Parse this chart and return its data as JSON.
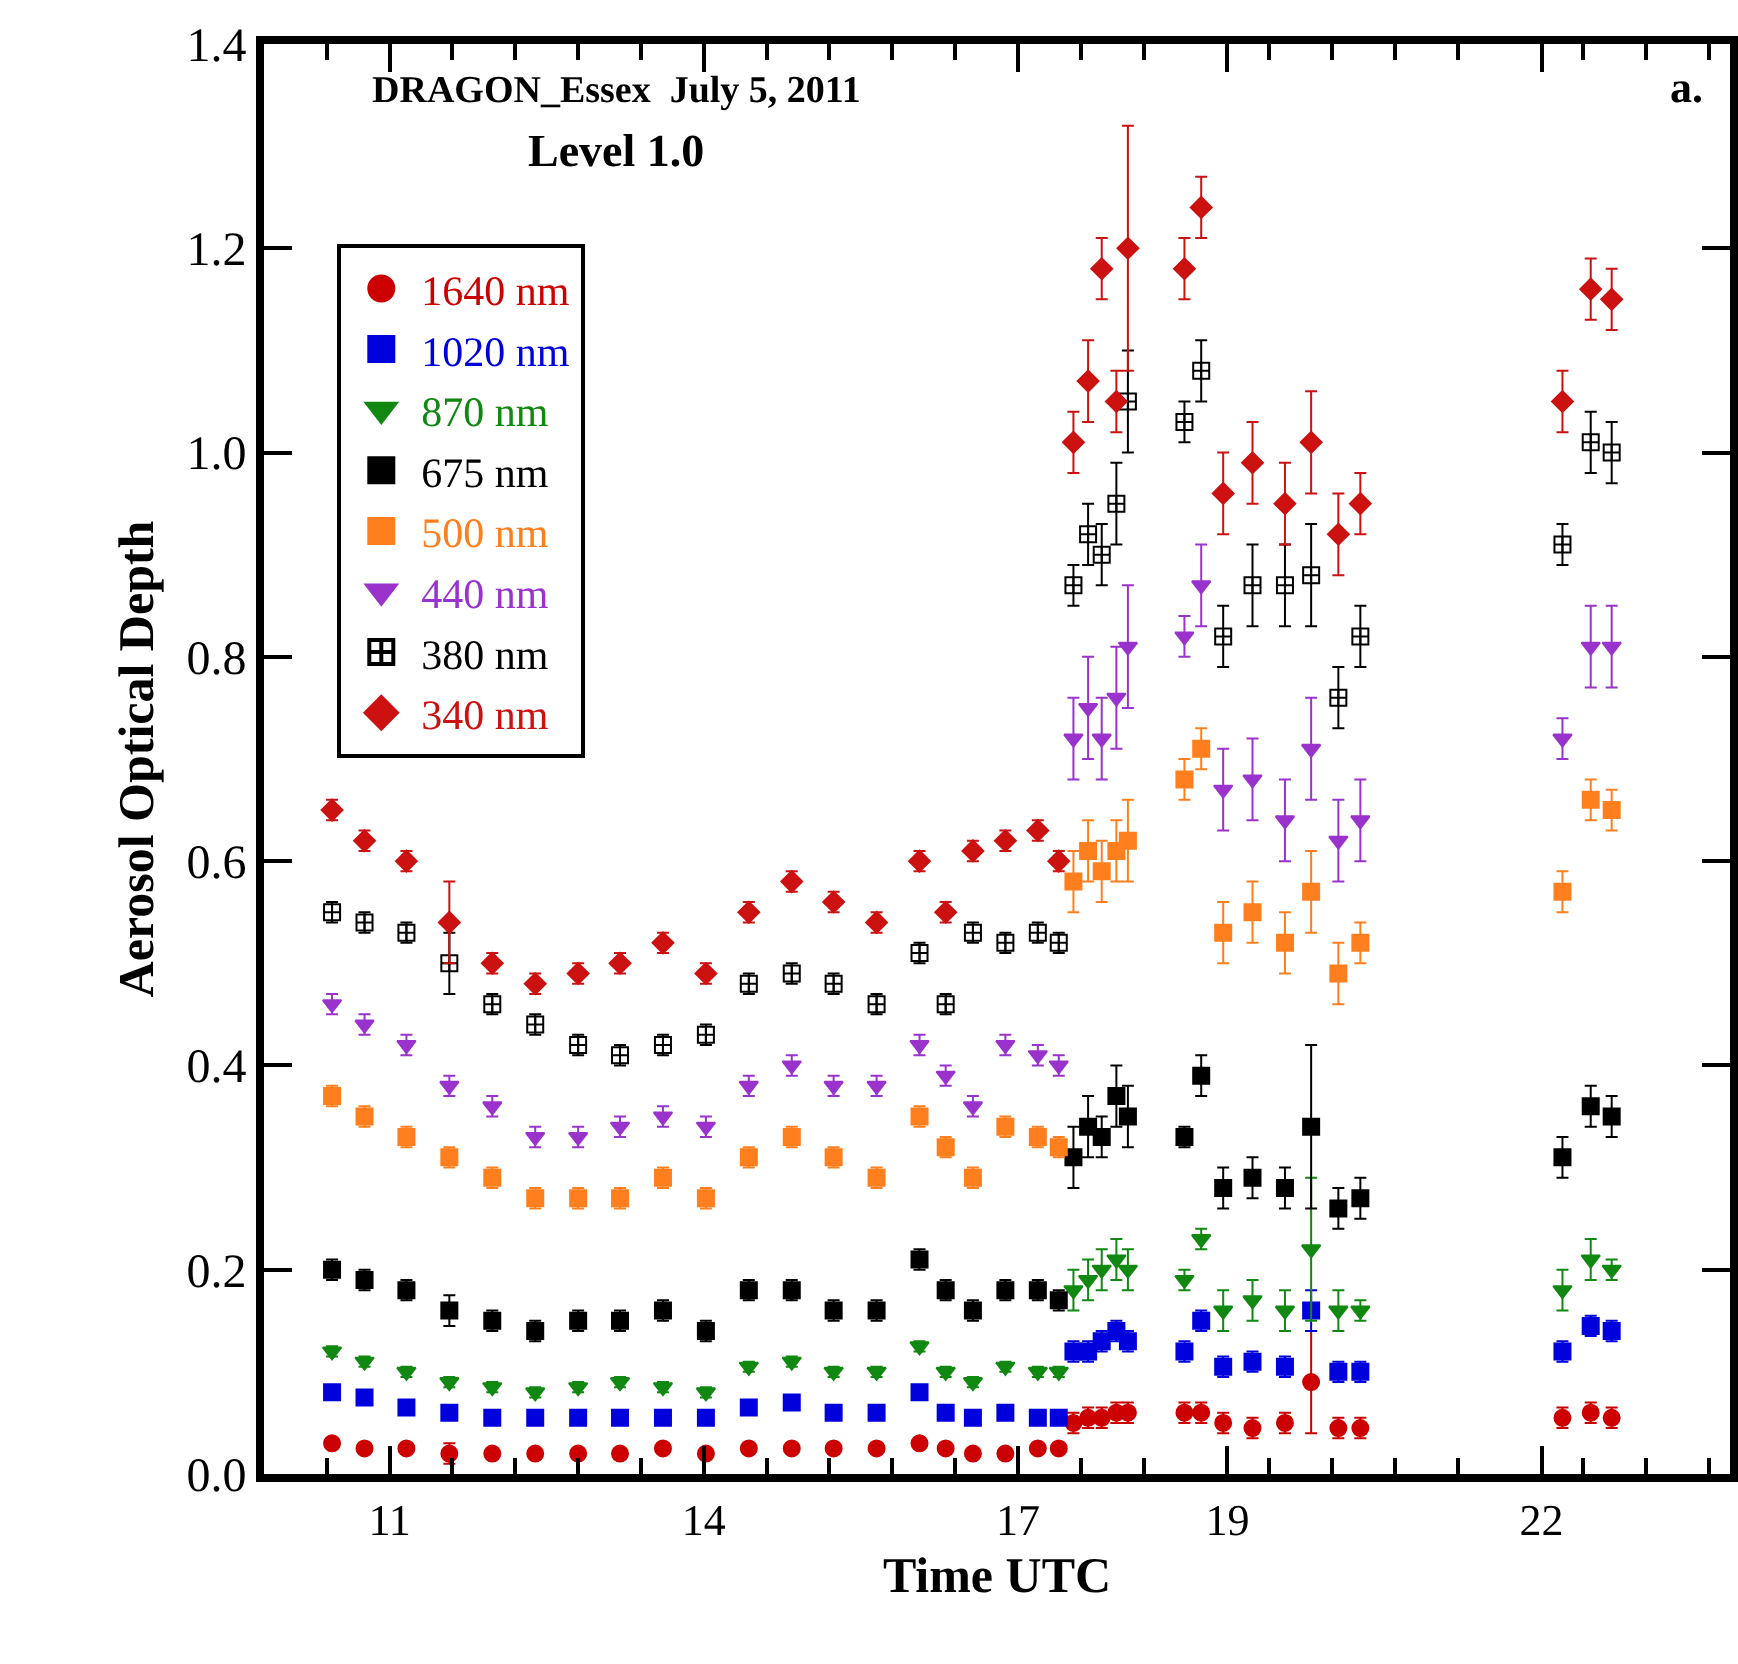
{
  "chart_data": {
    "type": "scatter",
    "title": "DRAGON_Essex  July 5, 2011",
    "subtitle": "Level 1.0",
    "annotations": [
      "a."
    ],
    "xlabel": "Time UTC",
    "ylabel": "Aerosol Optical Depth",
    "x": [
      10.45,
      10.76,
      11.16,
      11.57,
      11.98,
      12.39,
      12.8,
      13.2,
      13.61,
      14.02,
      14.43,
      14.84,
      15.24,
      15.65,
      16.06,
      16.31,
      16.57,
      16.88,
      17.19,
      17.39,
      17.53,
      17.67,
      17.8,
      17.94,
      18.05,
      18.59,
      18.75,
      18.96,
      19.24,
      19.55,
      19.8,
      20.06,
      20.27,
      22.2,
      22.47,
      22.67
    ],
    "xlim": [
      9.8,
      23.8
    ],
    "xticks": [
      {
        "value": 10.4,
        "label": null
      },
      11,
      {
        "value": 11.6,
        "label": null
      },
      {
        "value": 12.2,
        "label": null
      },
      {
        "value": 12.8,
        "label": null
      },
      {
        "value": 13.4,
        "label": null
      },
      14,
      {
        "value": 14.6,
        "label": null
      },
      {
        "value": 15.2,
        "label": null
      },
      {
        "value": 15.8,
        "label": null
      },
      {
        "value": 16.4,
        "label": null
      },
      17,
      {
        "value": 17.6,
        "label": null
      },
      {
        "value": 18.2,
        "label": null
      },
      19,
      {
        "value": 19.4,
        "label": null
      },
      {
        "value": 20,
        "label": null
      },
      {
        "value": 20.6,
        "label": null
      },
      {
        "value": 21.2,
        "label": null
      },
      22,
      {
        "value": 22.4,
        "label": null
      },
      {
        "value": 23,
        "label": null
      },
      {
        "value": 23.6,
        "label": null
      }
    ],
    "ylim": [
      0,
      1.4
    ],
    "yticks": [
      {
        "value": 0,
        "label": "0.0"
      },
      {
        "value": 0.2,
        "label": "0.2"
      },
      {
        "value": 0.4,
        "label": "0.4"
      },
      {
        "value": 0.6,
        "label": "0.6"
      },
      {
        "value": 0.8,
        "label": "0.8"
      },
      {
        "value": 1,
        "label": "1.0"
      },
      {
        "value": 1.2,
        "label": "1.2"
      },
      {
        "value": 1.4,
        "label": "1.4"
      }
    ],
    "grid": false,
    "legend": "top left",
    "series": [
      {
        "name": "1640 nm",
        "color": "#cc0000",
        "marker": "circle",
        "values": [
          0.03,
          0.025,
          0.025,
          0.02,
          0.02,
          0.02,
          0.02,
          0.02,
          0.025,
          0.02,
          0.025,
          0.025,
          0.025,
          0.025,
          0.03,
          0.025,
          0.02,
          0.02,
          0.025,
          0.025,
          0.05,
          0.055,
          0.055,
          0.06,
          0.06,
          0.06,
          0.06,
          0.05,
          0.045,
          0.05,
          0.09,
          0.045,
          0.045,
          0.055,
          0.06,
          0.055
        ],
        "errors": [
          null,
          null,
          null,
          0.01,
          null,
          null,
          null,
          null,
          null,
          null,
          null,
          null,
          null,
          null,
          null,
          null,
          null,
          null,
          null,
          null,
          0.01,
          0.01,
          0.01,
          0.01,
          0.01,
          0.01,
          0.01,
          0.01,
          0.01,
          0.01,
          0.05,
          0.01,
          0.01,
          0.01,
          0.01,
          0.01
        ]
      },
      {
        "name": "1020 nm",
        "color": "#0000dd",
        "marker": "square",
        "values": [
          0.08,
          0.075,
          0.065,
          0.06,
          0.055,
          0.055,
          0.055,
          0.055,
          0.055,
          0.055,
          0.065,
          0.07,
          0.06,
          0.06,
          0.08,
          0.06,
          0.055,
          0.06,
          0.055,
          0.055,
          0.12,
          0.12,
          0.13,
          0.14,
          0.13,
          0.12,
          0.15,
          0.105,
          0.11,
          0.105,
          0.16,
          0.1,
          0.1,
          0.12,
          0.145,
          0.14
        ],
        "errors": [
          null,
          null,
          null,
          null,
          null,
          null,
          null,
          null,
          null,
          null,
          null,
          null,
          null,
          null,
          null,
          null,
          null,
          null,
          null,
          null,
          0.01,
          0.01,
          0.01,
          0.01,
          0.01,
          0.01,
          0.01,
          0.01,
          0.01,
          0.01,
          0.02,
          0.01,
          0.01,
          0.01,
          0.01,
          0.01
        ]
      },
      {
        "name": "870 nm",
        "color": "#118811",
        "marker": "triangle",
        "values": [
          0.12,
          0.11,
          0.1,
          0.09,
          0.085,
          0.08,
          0.085,
          0.09,
          0.085,
          0.08,
          0.105,
          0.11,
          0.1,
          0.1,
          0.125,
          0.1,
          0.09,
          0.105,
          0.1,
          0.1,
          0.18,
          0.19,
          0.2,
          0.21,
          0.2,
          0.19,
          0.23,
          0.16,
          0.17,
          0.16,
          0.22,
          0.16,
          0.16,
          0.18,
          0.21,
          0.2
        ],
        "errors": [
          0.005,
          0.005,
          0.005,
          0.005,
          0.005,
          0.005,
          0.005,
          0.005,
          0.005,
          0.005,
          0.005,
          0.005,
          0.005,
          0.005,
          0.005,
          0.005,
          0.005,
          0.005,
          0.005,
          0.005,
          0.02,
          0.02,
          0.02,
          0.02,
          0.02,
          0.01,
          0.01,
          0.02,
          0.02,
          0.02,
          0.07,
          0.02,
          0.01,
          0.02,
          0.02,
          0.01
        ]
      },
      {
        "name": "675 nm",
        "color": "#000000",
        "marker": "square",
        "values": [
          0.2,
          0.19,
          0.18,
          0.16,
          0.15,
          0.14,
          0.15,
          0.15,
          0.16,
          0.14,
          0.18,
          0.18,
          0.16,
          0.16,
          0.21,
          0.18,
          0.16,
          0.18,
          0.18,
          0.17,
          0.31,
          0.34,
          0.33,
          0.37,
          0.35,
          0.33,
          0.39,
          0.28,
          0.29,
          0.28,
          0.34,
          0.26,
          0.27,
          0.31,
          0.36,
          0.35
        ],
        "errors": [
          0.01,
          0.01,
          0.01,
          0.015,
          0.01,
          0.01,
          0.01,
          0.01,
          0.01,
          0.01,
          0.01,
          0.01,
          0.01,
          0.01,
          0.01,
          0.01,
          0.01,
          0.01,
          0.01,
          0.01,
          0.03,
          0.03,
          0.02,
          0.03,
          0.03,
          0.01,
          0.02,
          0.02,
          0.02,
          0.02,
          0.08,
          0.02,
          0.02,
          0.02,
          0.02,
          0.02
        ]
      },
      {
        "name": "500 nm",
        "color": "#ff7f1e",
        "marker": "square",
        "values": [
          0.37,
          0.35,
          0.33,
          0.31,
          0.29,
          0.27,
          0.27,
          0.27,
          0.29,
          0.27,
          0.31,
          0.33,
          0.31,
          0.29,
          0.35,
          0.32,
          0.29,
          0.34,
          0.33,
          0.32,
          0.58,
          0.61,
          0.59,
          0.61,
          0.62,
          0.68,
          0.71,
          0.53,
          0.55,
          0.52,
          0.57,
          0.49,
          0.52,
          0.57,
          0.66,
          0.65
        ],
        "errors": [
          0.01,
          0.01,
          0.01,
          0.01,
          0.01,
          0.01,
          0.01,
          0.01,
          0.01,
          0.01,
          0.01,
          0.01,
          0.01,
          0.01,
          0.01,
          0.01,
          0.01,
          0.01,
          0.01,
          0.01,
          0.03,
          0.03,
          0.03,
          0.03,
          0.04,
          0.02,
          0.02,
          0.03,
          0.03,
          0.03,
          0.04,
          0.03,
          0.02,
          0.02,
          0.02,
          0.02
        ]
      },
      {
        "name": "440 nm",
        "color": "#9933cc",
        "marker": "triangle",
        "values": [
          0.46,
          0.44,
          0.42,
          0.38,
          0.36,
          0.33,
          0.33,
          0.34,
          0.35,
          0.34,
          0.38,
          0.4,
          0.38,
          0.38,
          0.42,
          0.39,
          0.36,
          0.42,
          0.41,
          0.4,
          0.72,
          0.75,
          0.72,
          0.76,
          0.81,
          0.82,
          0.87,
          0.67,
          0.68,
          0.64,
          0.71,
          0.62,
          0.64,
          0.72,
          0.81,
          0.81
        ],
        "errors": [
          0.01,
          0.01,
          0.01,
          0.01,
          0.01,
          0.01,
          0.01,
          0.01,
          0.01,
          0.01,
          0.01,
          0.01,
          0.01,
          0.01,
          0.01,
          0.01,
          0.01,
          0.01,
          0.01,
          0.01,
          0.04,
          0.05,
          0.04,
          0.05,
          0.06,
          0.02,
          0.04,
          0.04,
          0.04,
          0.04,
          0.05,
          0.04,
          0.04,
          0.02,
          0.04,
          0.04
        ]
      },
      {
        "name": "380 nm",
        "color": "#000000",
        "marker": "cross",
        "values": [
          0.55,
          0.54,
          0.53,
          0.5,
          0.46,
          0.44,
          0.42,
          0.41,
          0.42,
          0.43,
          0.48,
          0.49,
          0.48,
          0.46,
          0.51,
          0.46,
          0.53,
          0.52,
          0.53,
          0.52,
          0.87,
          0.92,
          0.9,
          0.95,
          1.05,
          1.03,
          1.08,
          0.82,
          0.87,
          0.87,
          0.88,
          0.76,
          0.82,
          0.91,
          1.01,
          1.0
        ],
        "errors": [
          0.01,
          0.01,
          0.01,
          0.03,
          0.01,
          0.01,
          0.01,
          0.01,
          0.01,
          0.01,
          0.01,
          0.01,
          0.01,
          0.01,
          0.01,
          0.01,
          0.01,
          0.01,
          0.01,
          0.01,
          0.02,
          0.03,
          0.03,
          0.04,
          0.05,
          0.02,
          0.03,
          0.03,
          0.04,
          0.04,
          0.05,
          0.03,
          0.03,
          0.02,
          0.03,
          0.03
        ]
      },
      {
        "name": "340 nm",
        "color": "#cc1111",
        "marker": "diamond",
        "values": [
          0.65,
          0.62,
          0.6,
          0.54,
          0.5,
          0.48,
          0.49,
          0.5,
          0.52,
          0.49,
          0.55,
          0.58,
          0.56,
          0.54,
          0.6,
          0.55,
          0.61,
          0.62,
          0.63,
          0.6,
          1.01,
          1.07,
          1.18,
          1.05,
          1.2,
          1.18,
          1.24,
          0.96,
          0.99,
          0.95,
          1.01,
          0.92,
          0.95,
          1.05,
          1.16,
          1.15
        ],
        "errors": [
          0.01,
          0.01,
          0.01,
          0.04,
          0.01,
          0.01,
          0.01,
          0.01,
          0.01,
          0.01,
          0.01,
          0.01,
          0.01,
          0.01,
          0.01,
          0.01,
          0.01,
          0.01,
          0.01,
          0.01,
          0.03,
          0.04,
          0.03,
          0.03,
          0.12,
          0.03,
          0.03,
          0.04,
          0.04,
          0.04,
          0.05,
          0.04,
          0.03,
          0.03,
          0.03,
          0.03
        ]
      }
    ]
  }
}
